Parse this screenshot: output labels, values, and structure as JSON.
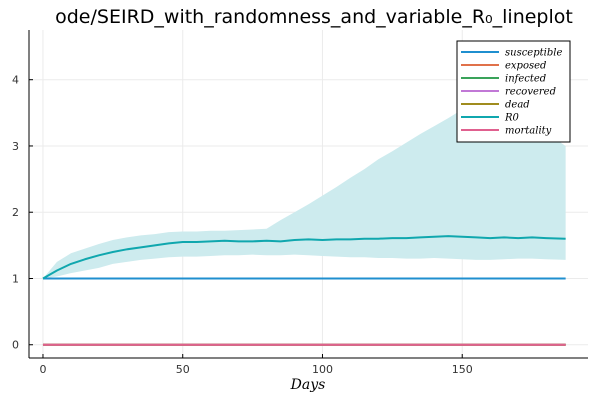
{
  "chart_data": {
    "type": "line",
    "title": "ode/SEIRD_with_randomness_and_variable_R₀_lineplot",
    "xlabel": "Days",
    "ylabel": "",
    "xlim": [
      -5,
      195
    ],
    "ylim": [
      -0.2,
      4.75
    ],
    "xticks": [
      0,
      50,
      100,
      150
    ],
    "yticks": [
      0,
      1,
      2,
      3,
      4
    ],
    "grid": true,
    "legend_position": "top-right",
    "series": [
      {
        "name": "susceptible",
        "color": "#1f8fcf",
        "x": [
          0,
          187
        ],
        "y": [
          1,
          1
        ]
      },
      {
        "name": "exposed",
        "color": "#e0714a",
        "x": [
          0,
          187
        ],
        "y": [
          0,
          0
        ]
      },
      {
        "name": "infected",
        "color": "#3aa35a",
        "x": [
          0,
          187
        ],
        "y": [
          0,
          0
        ]
      },
      {
        "name": "recovered",
        "color": "#c178d6",
        "x": [
          0,
          187
        ],
        "y": [
          0,
          0
        ]
      },
      {
        "name": "dead",
        "color": "#a08c1e",
        "x": [
          0,
          187
        ],
        "y": [
          0,
          0
        ]
      },
      {
        "name": "R0",
        "color": "#10a7ae",
        "band_color": "#cdebee",
        "x": [
          0,
          5,
          10,
          15,
          20,
          25,
          30,
          35,
          40,
          45,
          50,
          55,
          60,
          65,
          70,
          75,
          80,
          85,
          90,
          95,
          100,
          105,
          110,
          115,
          120,
          125,
          130,
          135,
          140,
          145,
          150,
          155,
          160,
          165,
          170,
          175,
          180,
          187
        ],
        "y": [
          1.0,
          1.12,
          1.22,
          1.29,
          1.35,
          1.4,
          1.44,
          1.47,
          1.5,
          1.53,
          1.55,
          1.55,
          1.56,
          1.57,
          1.56,
          1.56,
          1.57,
          1.56,
          1.58,
          1.59,
          1.58,
          1.59,
          1.59,
          1.6,
          1.6,
          1.61,
          1.61,
          1.62,
          1.63,
          1.64,
          1.63,
          1.62,
          1.61,
          1.62,
          1.61,
          1.62,
          1.61,
          1.6
        ],
        "lower": [
          1.0,
          1.03,
          1.08,
          1.12,
          1.16,
          1.22,
          1.25,
          1.28,
          1.3,
          1.32,
          1.33,
          1.33,
          1.34,
          1.35,
          1.35,
          1.36,
          1.35,
          1.35,
          1.36,
          1.35,
          1.34,
          1.33,
          1.32,
          1.32,
          1.31,
          1.31,
          1.3,
          1.3,
          1.31,
          1.3,
          1.29,
          1.28,
          1.28,
          1.29,
          1.3,
          1.3,
          1.29,
          1.28
        ],
        "upper": [
          1.0,
          1.25,
          1.38,
          1.45,
          1.52,
          1.58,
          1.62,
          1.65,
          1.67,
          1.7,
          1.71,
          1.71,
          1.72,
          1.72,
          1.73,
          1.74,
          1.75,
          1.88,
          2.0,
          2.12,
          2.25,
          2.38,
          2.52,
          2.65,
          2.8,
          2.92,
          3.05,
          3.18,
          3.3,
          3.42,
          3.55,
          3.6,
          3.6,
          3.65,
          3.55,
          3.45,
          3.2,
          3.0
        ]
      },
      {
        "name": "mortality",
        "color": "#e0608f",
        "x": [
          0,
          187
        ],
        "y": [
          0,
          0
        ]
      }
    ]
  }
}
